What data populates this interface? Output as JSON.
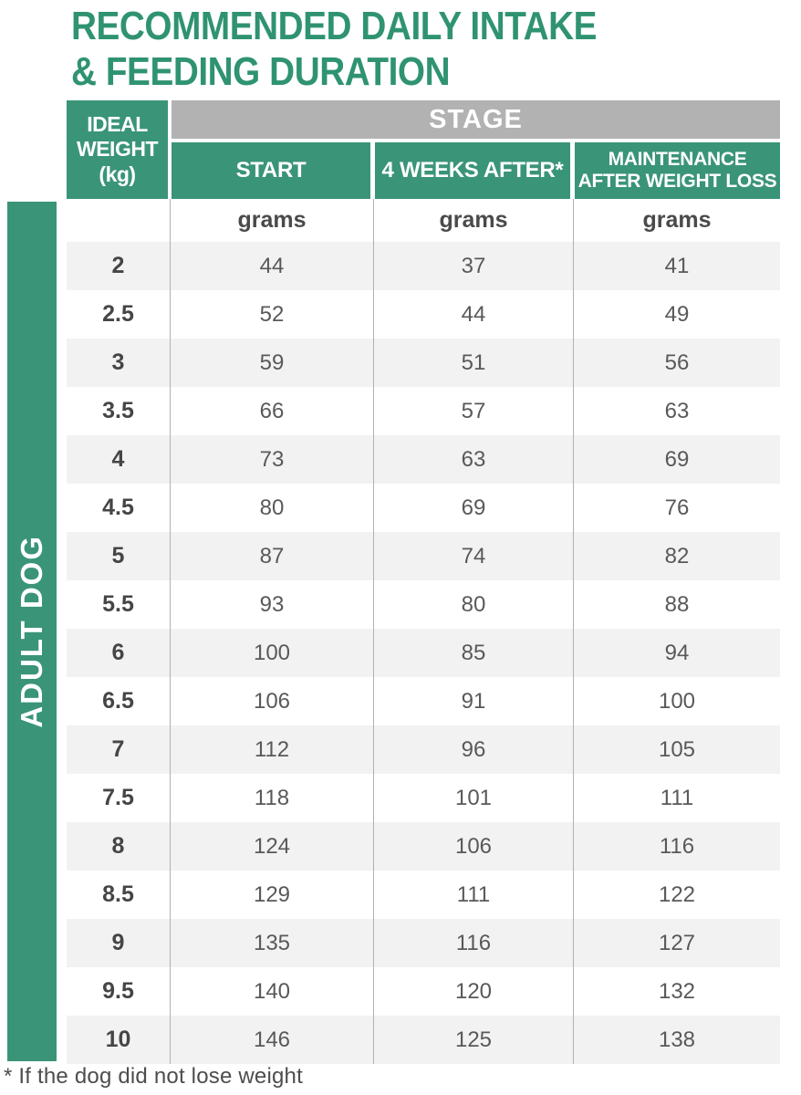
{
  "title": {
    "line1": "RECOMMENDED DAILY INTAKE",
    "line2": "& FEEDING DURATION"
  },
  "side_label": "ADULT DOG",
  "table": {
    "corner": {
      "line1": "IDEAL",
      "line2": "WEIGHT",
      "line3": "(kg)"
    },
    "stage_label": "STAGE",
    "columns": [
      "START",
      "4 WEEKS AFTER*",
      "MAINTENANCE AFTER WEIGHT LOSS"
    ],
    "unit_label": "grams",
    "rows": [
      {
        "weight": "2",
        "values": [
          "44",
          "37",
          "41"
        ]
      },
      {
        "weight": "2.5",
        "values": [
          "52",
          "44",
          "49"
        ]
      },
      {
        "weight": "3",
        "values": [
          "59",
          "51",
          "56"
        ]
      },
      {
        "weight": "3.5",
        "values": [
          "66",
          "57",
          "63"
        ]
      },
      {
        "weight": "4",
        "values": [
          "73",
          "63",
          "69"
        ]
      },
      {
        "weight": "4.5",
        "values": [
          "80",
          "69",
          "76"
        ]
      },
      {
        "weight": "5",
        "values": [
          "87",
          "74",
          "82"
        ]
      },
      {
        "weight": "5.5",
        "values": [
          "93",
          "80",
          "88"
        ]
      },
      {
        "weight": "6",
        "values": [
          "100",
          "85",
          "94"
        ]
      },
      {
        "weight": "6.5",
        "values": [
          "106",
          "91",
          "100"
        ]
      },
      {
        "weight": "7",
        "values": [
          "112",
          "96",
          "105"
        ]
      },
      {
        "weight": "7.5",
        "values": [
          "118",
          "101",
          "111"
        ]
      },
      {
        "weight": "8",
        "values": [
          "124",
          "106",
          "116"
        ]
      },
      {
        "weight": "8.5",
        "values": [
          "129",
          "111",
          "122"
        ]
      },
      {
        "weight": "9",
        "values": [
          "135",
          "116",
          "127"
        ]
      },
      {
        "weight": "9.5",
        "values": [
          "140",
          "120",
          "132"
        ]
      },
      {
        "weight": "10",
        "values": [
          "146",
          "125",
          "138"
        ]
      }
    ]
  },
  "footnote": "* If the dog did not lose weight",
  "colors": {
    "green": "#3A9478",
    "title_green": "#2F9372",
    "gray": "#B2B2B2",
    "stripe": "#F2F2F2",
    "separator": "#B0B0B0"
  },
  "chart_data": {
    "type": "table",
    "title": "RECOMMENDED DAILY INTAKE & FEEDING DURATION",
    "side_label": "ADULT DOG",
    "row_header": "IDEAL WEIGHT (kg)",
    "group_header": "STAGE",
    "columns": [
      "START",
      "4 WEEKS AFTER*",
      "MAINTENANCE AFTER WEIGHT LOSS"
    ],
    "units": "grams",
    "ideal_weight_kg": [
      2,
      2.5,
      3,
      3.5,
      4,
      4.5,
      5,
      5.5,
      6,
      6.5,
      7,
      7.5,
      8,
      8.5,
      9,
      9.5,
      10
    ],
    "series": [
      {
        "name": "START",
        "values": [
          44,
          52,
          59,
          66,
          73,
          80,
          87,
          93,
          100,
          106,
          112,
          118,
          124,
          129,
          135,
          140,
          146
        ]
      },
      {
        "name": "4 WEEKS AFTER*",
        "values": [
          37,
          44,
          51,
          57,
          63,
          69,
          74,
          80,
          85,
          91,
          96,
          101,
          106,
          111,
          116,
          120,
          125
        ]
      },
      {
        "name": "MAINTENANCE AFTER WEIGHT LOSS",
        "values": [
          41,
          49,
          56,
          63,
          69,
          76,
          82,
          88,
          94,
          100,
          105,
          111,
          116,
          122,
          127,
          132,
          138
        ]
      }
    ],
    "footnote": "* If the dog did not lose weight"
  }
}
